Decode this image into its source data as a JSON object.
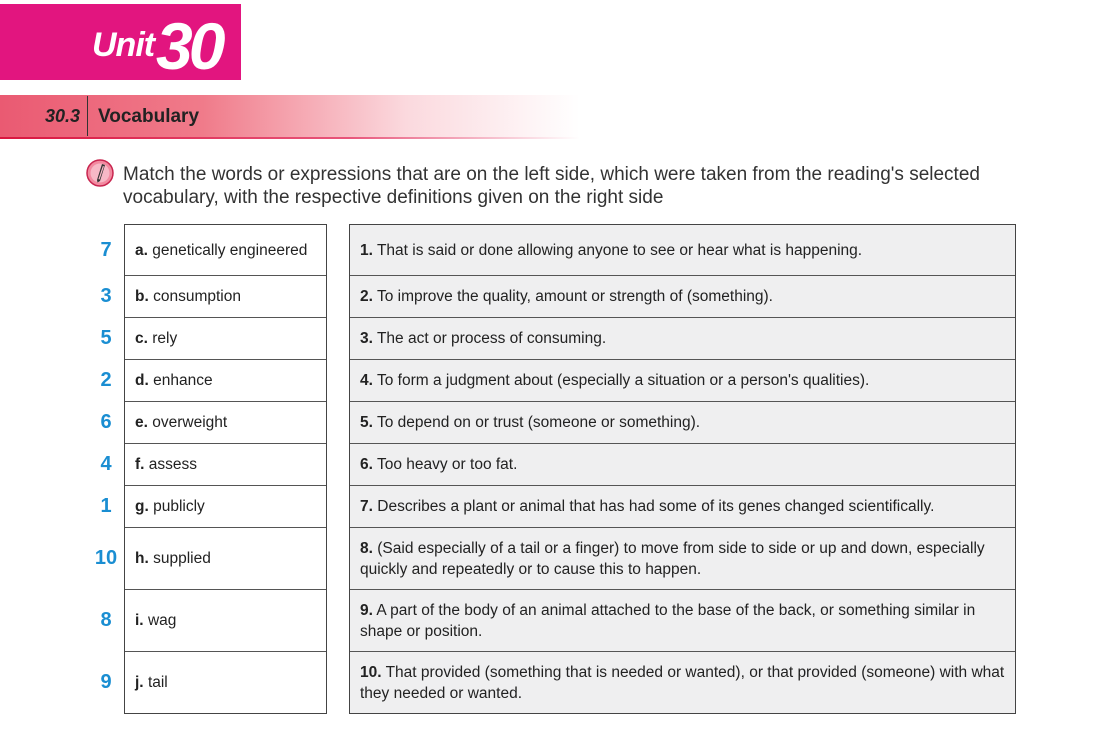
{
  "header": {
    "unit_label": "Unit",
    "unit_number": "30"
  },
  "section": {
    "number": "30.3",
    "title": "Vocabulary"
  },
  "instruction": "Match the words or expressions that are on the left side, which were taken from the reading's selected vocabulary, with the respective definitions given on the right side",
  "items": [
    {
      "answer": "7",
      "letter": "a.",
      "word": "genetically engineered",
      "number": "1.",
      "definition": "That is said or done allowing anyone to see or hear what is happening."
    },
    {
      "answer": "3",
      "letter": "b.",
      "word": "consumption",
      "number": "2.",
      "definition": "To improve the quality, amount or strength of (something)."
    },
    {
      "answer": "5",
      "letter": "c.",
      "word": "rely",
      "number": "3.",
      "definition": "The act or process of consuming."
    },
    {
      "answer": "2",
      "letter": "d.",
      "word": "enhance",
      "number": "4.",
      "definition": "To form a judgment about (especially a situation or a person's qualities)."
    },
    {
      "answer": "6",
      "letter": "e.",
      "word": "overweight",
      "number": "5.",
      "definition": "To depend on or trust (someone or something)."
    },
    {
      "answer": "4",
      "letter": "f.",
      "word": "assess",
      "number": "6.",
      "definition": "Too heavy or too fat."
    },
    {
      "answer": "1",
      "letter": "g.",
      "word": "publicly",
      "number": "7.",
      "definition": "Describes a plant or animal that has had some of its genes changed scientifically."
    },
    {
      "answer": "10",
      "letter": "h.",
      "word": "supplied",
      "number": "8.",
      "definition": "(Said especially of a tail or a finger) to move from side to side or up and down, especially quickly and repeatedly or to cause this to happen."
    },
    {
      "answer": "8",
      "letter": "i.",
      "word": "wag",
      "number": "9.",
      "definition": "A part of the body of an animal attached to the base of the back, or something similar in shape or position."
    },
    {
      "answer": "9",
      "letter": "j.",
      "word": "tail",
      "number": "10.",
      "definition": "That provided (something that is needed or wanted), or that provided (someone) with what they needed or wanted."
    }
  ]
}
